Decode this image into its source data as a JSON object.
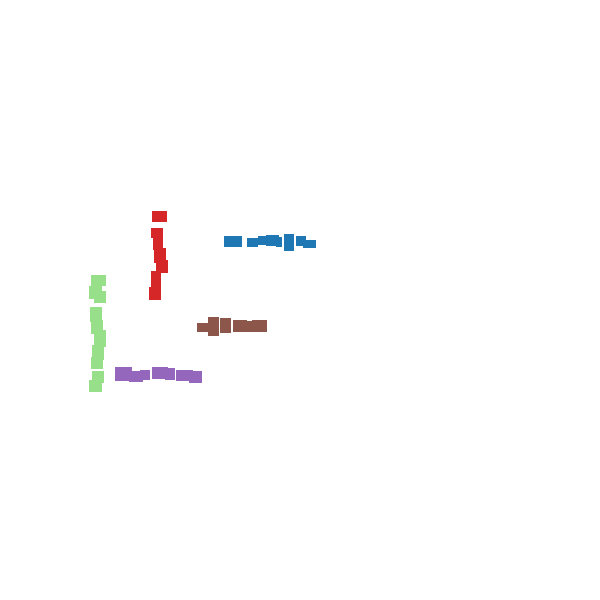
{
  "strokes": [
    {
      "id": "blue",
      "color": "#1f77b4",
      "orientation": "horizontal"
    },
    {
      "id": "red",
      "color": "#d62728",
      "orientation": "vertical"
    },
    {
      "id": "green",
      "color": "#98df8a",
      "orientation": "vertical"
    },
    {
      "id": "brown",
      "color": "#8c564b",
      "orientation": "horizontal"
    },
    {
      "id": "purple",
      "color": "#9467bd",
      "orientation": "horizontal"
    }
  ]
}
